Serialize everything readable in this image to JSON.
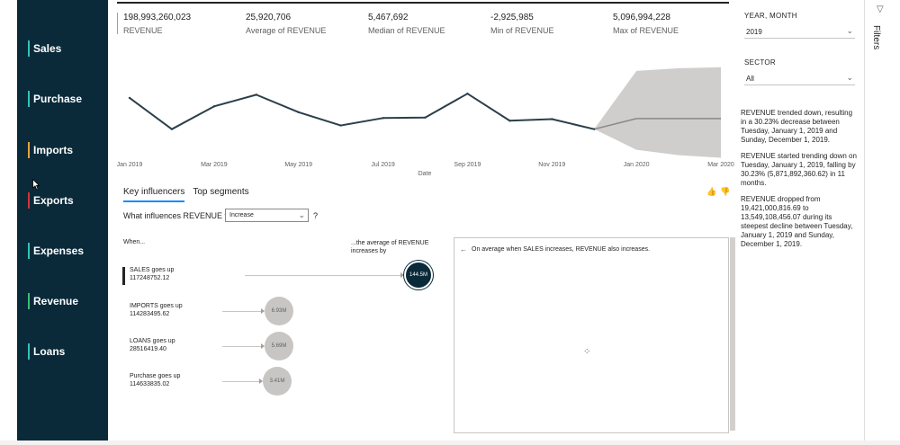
{
  "nav": {
    "items": [
      {
        "label": "Sales",
        "color": "#2ec4b6"
      },
      {
        "label": "Purchase",
        "color": "#2ec4b6"
      },
      {
        "label": "Imports",
        "color": "#e8a33d"
      },
      {
        "label": "Exports",
        "color": "#d13438"
      },
      {
        "label": "Expenses",
        "color": "#2ec4b6"
      },
      {
        "label": "Revenue",
        "color": "#38c172"
      },
      {
        "label": "Loans",
        "color": "#2ec4b6"
      }
    ]
  },
  "kpis": [
    {
      "value": "198,993,260,023",
      "label": "REVENUE"
    },
    {
      "value": "25,920,706",
      "label": "Average of REVENUE"
    },
    {
      "value": "5,467,692",
      "label": "Median of REVENUE"
    },
    {
      "value": "-2,925,985",
      "label": "Min of REVENUE"
    },
    {
      "value": "5,096,994,228",
      "label": "Max of REVENUE"
    }
  ],
  "slicers": {
    "year_month": {
      "title": "YEAR, MONTH",
      "value": "2019"
    },
    "sector": {
      "title": "SECTOR",
      "value": "All"
    }
  },
  "chart_data": {
    "type": "line",
    "x": [
      "Jan 2019",
      "Feb 2019",
      "Mar 2019",
      "Apr 2019",
      "May 2019",
      "Jun 2019",
      "Jul 2019",
      "Aug 2019",
      "Sep 2019",
      "Oct 2019",
      "Nov 2019",
      "Dec 2019"
    ],
    "series": [
      {
        "values": [
          19.4,
          13.5,
          17.8,
          20.0,
          16.7,
          14.2,
          15.6,
          15.7,
          20.2,
          15.1,
          15.4,
          13.5
        ]
      }
    ],
    "forecast": {
      "x": [
        "Dec 2019",
        "Jan 2020",
        "Feb 2020",
        "Mar 2020"
      ],
      "values": [
        13.5,
        15.5,
        15.5,
        15.5
      ],
      "upper": [
        13.5,
        24.5,
        25.0,
        25.2
      ],
      "lower": [
        13.5,
        9.6,
        8.6,
        8.1
      ]
    },
    "x_tick_labels": [
      "Jan 2019",
      "Mar 2019",
      "May 2019",
      "Jul 2019",
      "Sep 2019",
      "Nov 2019",
      "Jan 2020",
      "Mar 2020"
    ],
    "xlabel": "Date",
    "ylabel": "",
    "ylim": [
      7,
      26
    ],
    "line_color": "#2b3f4a",
    "forecast_color": "#8a8886",
    "band_color": "#c8c6c4"
  },
  "narrative": [
    "REVENUE trended down, resulting in a 30.23% decrease between Tuesday, January 1, 2019 and Sunday, December 1, 2019.",
    "REVENUE started trending down on Tuesday, January 1, 2019, falling by 30.23% (5,871,892,360.62) in 11 months.",
    "REVENUE dropped from 19,421,000,816.69 to 13,549,108,456.07 during its steepest decline between Tuesday, January 1, 2019 and Sunday, December 1, 2019."
  ],
  "key_influencers": {
    "tabs": [
      "Key influencers",
      "Top segments"
    ],
    "question_prefix": "What influences REVENUE to",
    "dropdown_value": "Increase",
    "question_mark": "?",
    "when_header": "When...",
    "avg_header": "...the average of REVENUE increases by",
    "items": [
      {
        "name": "SALES goes up",
        "value": "117248752.12",
        "impact": "144.5M",
        "impact_num": 144.5,
        "selected": true
      },
      {
        "name": "IMPORTS goes up",
        "value": "114283495.62",
        "impact": "6.93M",
        "impact_num": 6.93,
        "selected": false
      },
      {
        "name": "LOANS goes up",
        "value": "28516419.40",
        "impact": "5.69M",
        "impact_num": 5.69,
        "selected": false
      },
      {
        "name": "Purchase goes up",
        "value": "114633835.02",
        "impact": "3.41M",
        "impact_num": 3.41,
        "selected": false
      }
    ],
    "detail_back": "←",
    "detail_text": "On average when SALES increases, REVENUE also increases.",
    "thumb_up": "👍",
    "thumb_down": "👎",
    "spinner": "⁘"
  },
  "filters_pane": {
    "label": "Filters",
    "icon": "filter-icon"
  }
}
